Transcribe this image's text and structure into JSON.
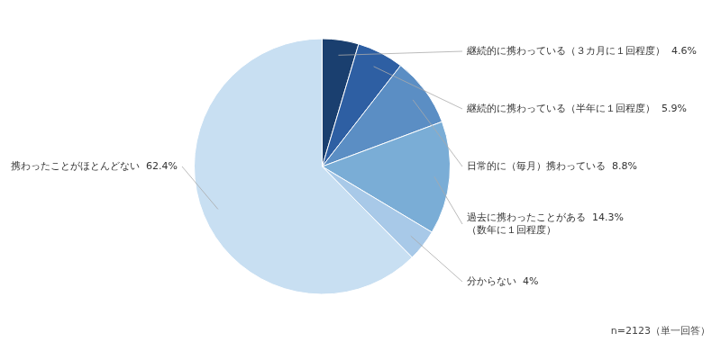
{
  "chart_data": {
    "type": "pie",
    "categories": [
      "継続的に携わっている（３カ月に１回程度）  4.6%",
      "継続的に携わっている（半年に１回程度）  5.9%",
      "日常的に（毎月）携わっている  8.8%",
      "過去に携わったことがある  14.3%\n（数年に１回程度）",
      "分からない  4%",
      "携わったことがほとんどない  62.4%"
    ],
    "values": [
      4.6,
      5.9,
      8.8,
      14.3,
      4.0,
      62.4
    ],
    "colors": [
      "#1a3f6f",
      "#2e5fa3",
      "#5b8ec4",
      "#7aadd6",
      "#a8c9e8",
      "#c8dff2"
    ],
    "annotations": [
      "n=2123（単一回答）"
    ]
  }
}
